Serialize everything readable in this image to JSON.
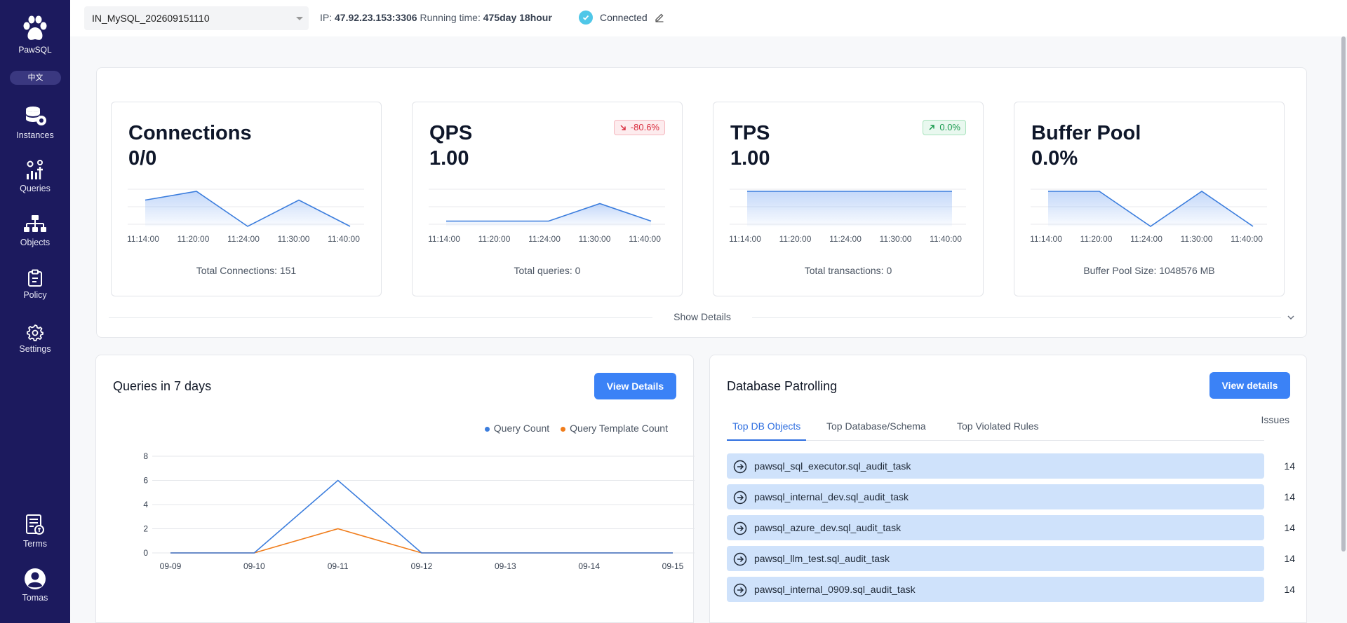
{
  "app": {
    "name": "PawSQL",
    "lang_toggle": "中文"
  },
  "sidebar": {
    "items": [
      {
        "label": "Instances",
        "icon": "database-icon"
      },
      {
        "label": "Queries",
        "icon": "queries-icon"
      },
      {
        "label": "Objects",
        "icon": "hierarchy-icon"
      },
      {
        "label": "Policy",
        "icon": "clipboard-icon"
      },
      {
        "label": "Settings",
        "icon": "gear-icon"
      }
    ],
    "bottom": [
      {
        "label": "Terms",
        "icon": "terms-icon"
      },
      {
        "label": "Tomas",
        "icon": "user-avatar-icon"
      }
    ]
  },
  "topbar": {
    "instance": "IN_MySQL_202609151110",
    "ip_label": "IP:",
    "ip_value": "47.92.23.153:3306",
    "running_label": "Running time:",
    "running_value": "475day 18hour",
    "status": "Connected"
  },
  "metrics": [
    {
      "title": "Connections",
      "value": "0/0",
      "footer": "Total Connections: 151",
      "badge": null,
      "times": [
        "11:14:00",
        "11:20:00",
        "11:24:00",
        "11:30:00",
        "11:40:00"
      ],
      "series": [
        0.75,
        1.0,
        0.0,
        0.75,
        0.0
      ]
    },
    {
      "title": "QPS",
      "value": "1.00",
      "footer": "Total queries: 0",
      "badge": {
        "dir": "down",
        "text": "-80.6%"
      },
      "times": [
        "11:14:00",
        "11:20:00",
        "11:24:00",
        "11:30:00",
        "11:40:00"
      ],
      "series": [
        0.15,
        0.15,
        0.15,
        0.65,
        0.15
      ]
    },
    {
      "title": "TPS",
      "value": "1.00",
      "footer": "Total transactions: 0",
      "badge": {
        "dir": "up",
        "text": "0.0%"
      },
      "times": [
        "11:14:00",
        "11:20:00",
        "11:24:00",
        "11:30:00",
        "11:40:00"
      ],
      "series": [
        1.0,
        1.0,
        1.0,
        1.0,
        1.0
      ]
    },
    {
      "title": "Buffer Pool",
      "value": "0.0%",
      "footer": "Buffer Pool Size: 1048576 MB",
      "badge": null,
      "times": [
        "11:14:00",
        "11:20:00",
        "11:24:00",
        "11:30:00",
        "11:40:00"
      ],
      "series": [
        1.0,
        1.0,
        0.0,
        1.0,
        0.0
      ]
    }
  ],
  "show_details": "Show Details",
  "queries": {
    "title": "Queries in 7 days",
    "button": "View Details",
    "chart_data": {
      "type": "line",
      "x": [
        "09-09",
        "09-10",
        "09-11",
        "09-12",
        "09-13",
        "09-14",
        "09-15"
      ],
      "series": [
        {
          "name": "Query Count",
          "values": [
            0,
            0,
            6,
            0,
            0,
            0,
            0
          ],
          "color": "#3b7ddd"
        },
        {
          "name": "Query Template Count",
          "values": [
            0,
            0,
            2,
            0,
            0,
            0,
            0
          ],
          "color": "#f07c1a"
        }
      ],
      "ylim": [
        0,
        8
      ],
      "yticks": [
        0,
        2,
        4,
        6,
        8
      ],
      "legend": "top-right",
      "grid": true
    }
  },
  "patrol": {
    "title": "Database Patrolling",
    "button": "View details",
    "tabs": [
      "Top DB Objects",
      "Top Database/Schema",
      "Top Violated Rules"
    ],
    "issues_header": "Issues",
    "rows": [
      {
        "name": "pawsql_sql_executor.sql_audit_task",
        "issues": "14"
      },
      {
        "name": "pawsql_internal_dev.sql_audit_task",
        "issues": "14"
      },
      {
        "name": "pawsql_azure_dev.sql_audit_task",
        "issues": "14"
      },
      {
        "name": "pawsql_llm_test.sql_audit_task",
        "issues": "14"
      },
      {
        "name": "pawsql_internal_0909.sql_audit_task",
        "issues": "14"
      }
    ]
  }
}
